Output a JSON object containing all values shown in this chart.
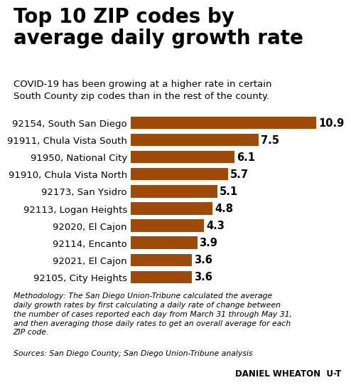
{
  "title": "Top 10 ZIP codes by\naverage daily growth rate",
  "subtitle": "COVID-19 has been growing at a higher rate in certain\nSouth County zip codes than in the rest of the county.",
  "categories": [
    "92105, City Heights",
    "92021, El Cajon",
    "92114, Encanto",
    "92020, El Cajon",
    "92113, Logan Heights",
    "92173, San Ysidro",
    "91910, Chula Vista North",
    "91950, National City",
    "91911, Chula Vista South",
    "92154, South San Diego"
  ],
  "values": [
    3.6,
    3.6,
    3.9,
    4.3,
    4.8,
    5.1,
    5.7,
    6.1,
    7.5,
    10.9
  ],
  "value_labels": [
    "3.6",
    "3.6",
    "3.9",
    "4.3",
    "4.8",
    "5.1",
    "5.7",
    "6.1",
    "7.5",
    "10.9"
  ],
  "xlim": [
    0,
    11.8
  ],
  "methodology": "Methodology: The San Diego Union-Tribune calculated the average\ndaily growth rates by first calculating a daily rate of change between\nthe number of cases reported each day from March 31 through May 31,\nand then averaging those daily rates to get an overall average for each\nZIP code.",
  "sources": "Sources: San Diego County; San Diego Union-Tribune analysis",
  "byline": "DANIEL WHEATON  U-T",
  "bg_color": "#ffffff",
  "bar_color": "#9e4a0a",
  "title_fontsize": 20,
  "subtitle_fontsize": 9.5,
  "label_fontsize": 9.5,
  "value_fontsize": 10.5,
  "footer_fontsize": 7.8
}
